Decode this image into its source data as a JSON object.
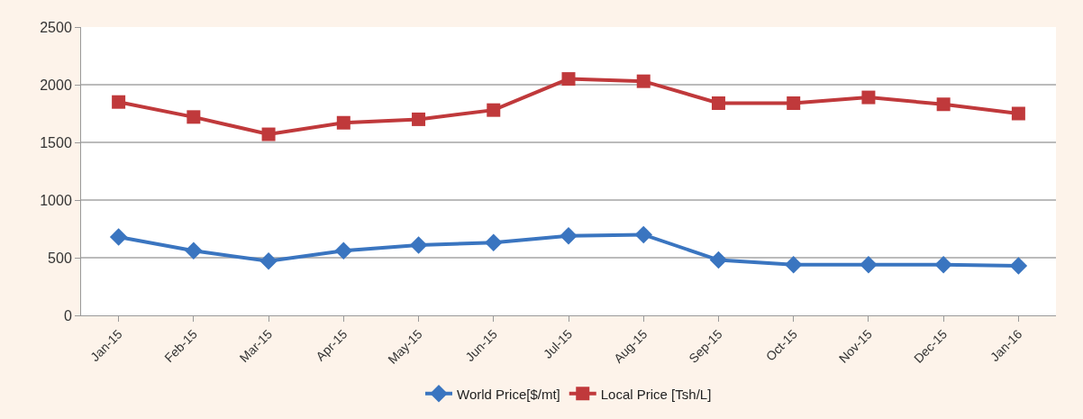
{
  "chart_data": {
    "type": "line",
    "categories": [
      "Jan-15",
      "Feb-15",
      "Mar-15",
      "Apr-15",
      "May-15",
      "Jun-15",
      "Jul-15",
      "Aug-15",
      "Sep-15",
      "Oct-15",
      "Nov-15",
      "Dec-15",
      "Jan-16"
    ],
    "series": [
      {
        "name": "World Price[$/mt]",
        "color": "#3a75c0",
        "marker": "diamond",
        "values": [
          680,
          560,
          470,
          560,
          610,
          630,
          690,
          700,
          480,
          440,
          440,
          440,
          430
        ]
      },
      {
        "name": "Local Price [Tsh/L]",
        "color": "#c0393b",
        "marker": "square",
        "values": [
          1850,
          1720,
          1570,
          1670,
          1700,
          1780,
          2050,
          2030,
          1840,
          1840,
          1890,
          1830,
          1750
        ]
      }
    ],
    "ylim": [
      0,
      2500
    ],
    "yticks": [
      0,
      500,
      1000,
      1500,
      2000,
      2500
    ],
    "grid": "y",
    "legend": "bottom",
    "line_style": "solid"
  }
}
